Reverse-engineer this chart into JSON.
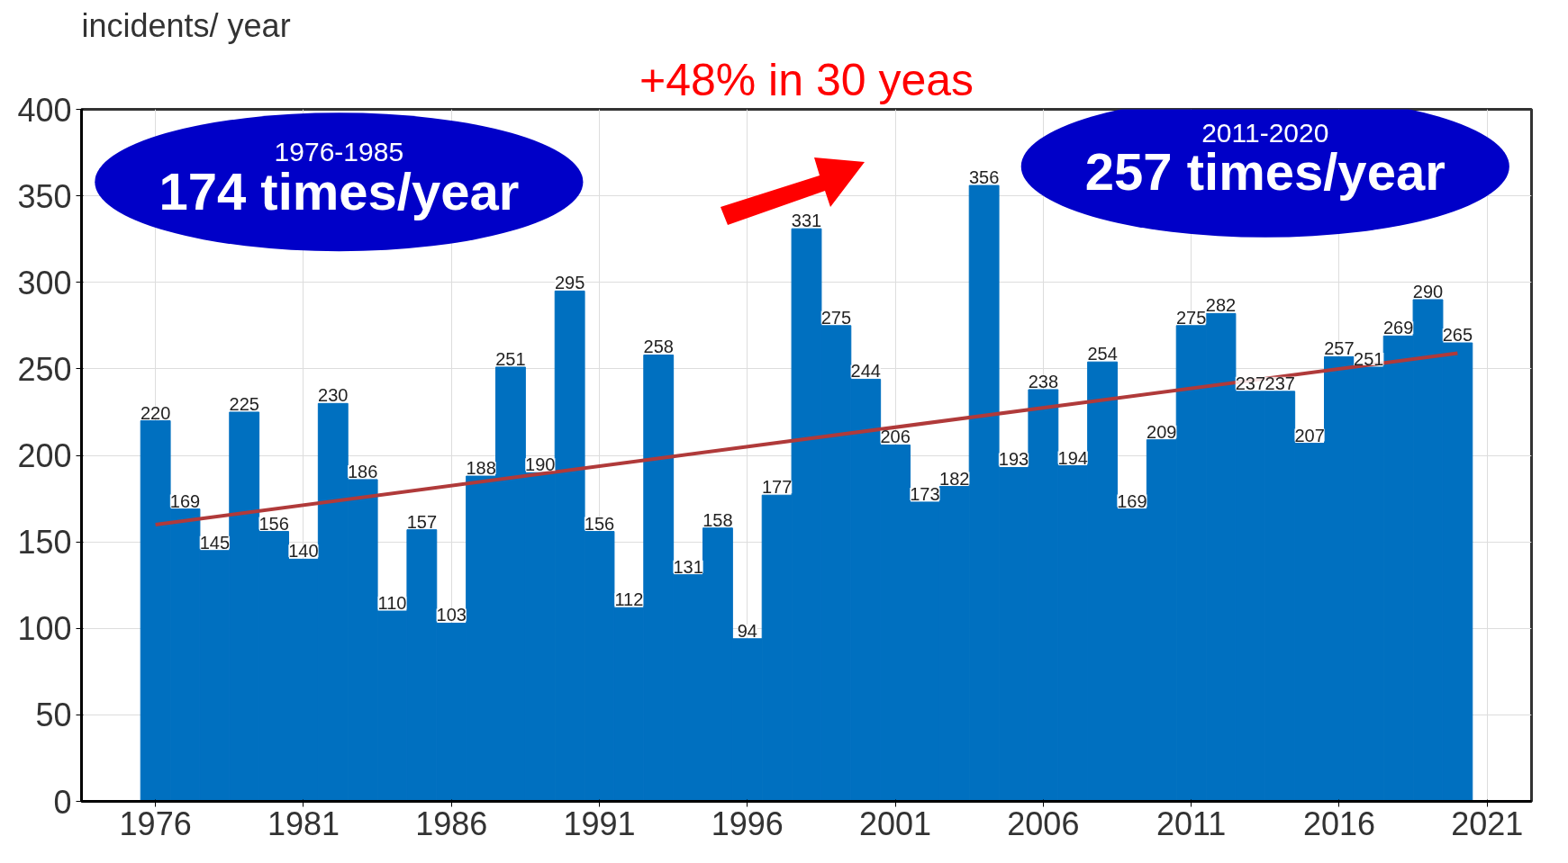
{
  "chart_data": {
    "type": "bar",
    "ylabel": "incidents/ year",
    "x": [
      1976,
      1977,
      1978,
      1979,
      1980,
      1981,
      1982,
      1983,
      1984,
      1985,
      1986,
      1987,
      1988,
      1989,
      1990,
      1991,
      1992,
      1993,
      1994,
      1995,
      1996,
      1997,
      1998,
      1999,
      2000,
      2001,
      2002,
      2003,
      2004,
      2005,
      2006,
      2007,
      2008,
      2009,
      2010,
      2011,
      2012,
      2013,
      2014,
      2015,
      2016,
      2017,
      2018,
      2019,
      2020
    ],
    "series": [
      {
        "color": "#0070c0",
        "values": [
          220,
          169,
          145,
          225,
          156,
          140,
          230,
          186,
          110,
          157,
          103,
          188,
          251,
          190,
          295,
          156,
          112,
          258,
          131,
          158,
          94,
          177,
          331,
          275,
          244,
          206,
          173,
          182,
          356,
          193,
          238,
          194,
          254,
          169,
          209,
          275,
          282,
          237,
          237,
          207,
          257,
          251,
          269,
          290,
          265
        ],
        "value_labels": [
          "220",
          "169",
          "145",
          "225",
          "156",
          "140",
          "230",
          "186",
          "110",
          "157",
          "103",
          "188",
          "251",
          "190",
          "295",
          "156",
          "112",
          "258",
          "131",
          "158",
          "94",
          "177",
          "331",
          "275",
          "244",
          "206",
          "173",
          "182",
          "356",
          "193",
          "238",
          "194",
          "254",
          "169",
          "209",
          "275",
          "282",
          "237",
          "237",
          "207",
          "257",
          "251",
          "269",
          "290",
          "265"
        ]
      },
      {
        "type": "line",
        "color": "#b03a3a",
        "x": [
          1976,
          2020
        ],
        "values": [
          160,
          259
        ]
      }
    ],
    "xlim": [
      1973.5,
      2022.5
    ],
    "xticks": [
      1976,
      1981,
      1986,
      1991,
      1996,
      2001,
      2006,
      2011,
      2016,
      2021
    ],
    "ylim": [
      0,
      400
    ],
    "yticks": [
      0,
      50,
      100,
      150,
      200,
      250,
      300,
      350,
      400
    ],
    "grid": true,
    "annotations": [
      "+48% in 30 yeas",
      "1976-1985",
      "174 times/year",
      "2011-2020",
      "257 times/year"
    ]
  }
}
